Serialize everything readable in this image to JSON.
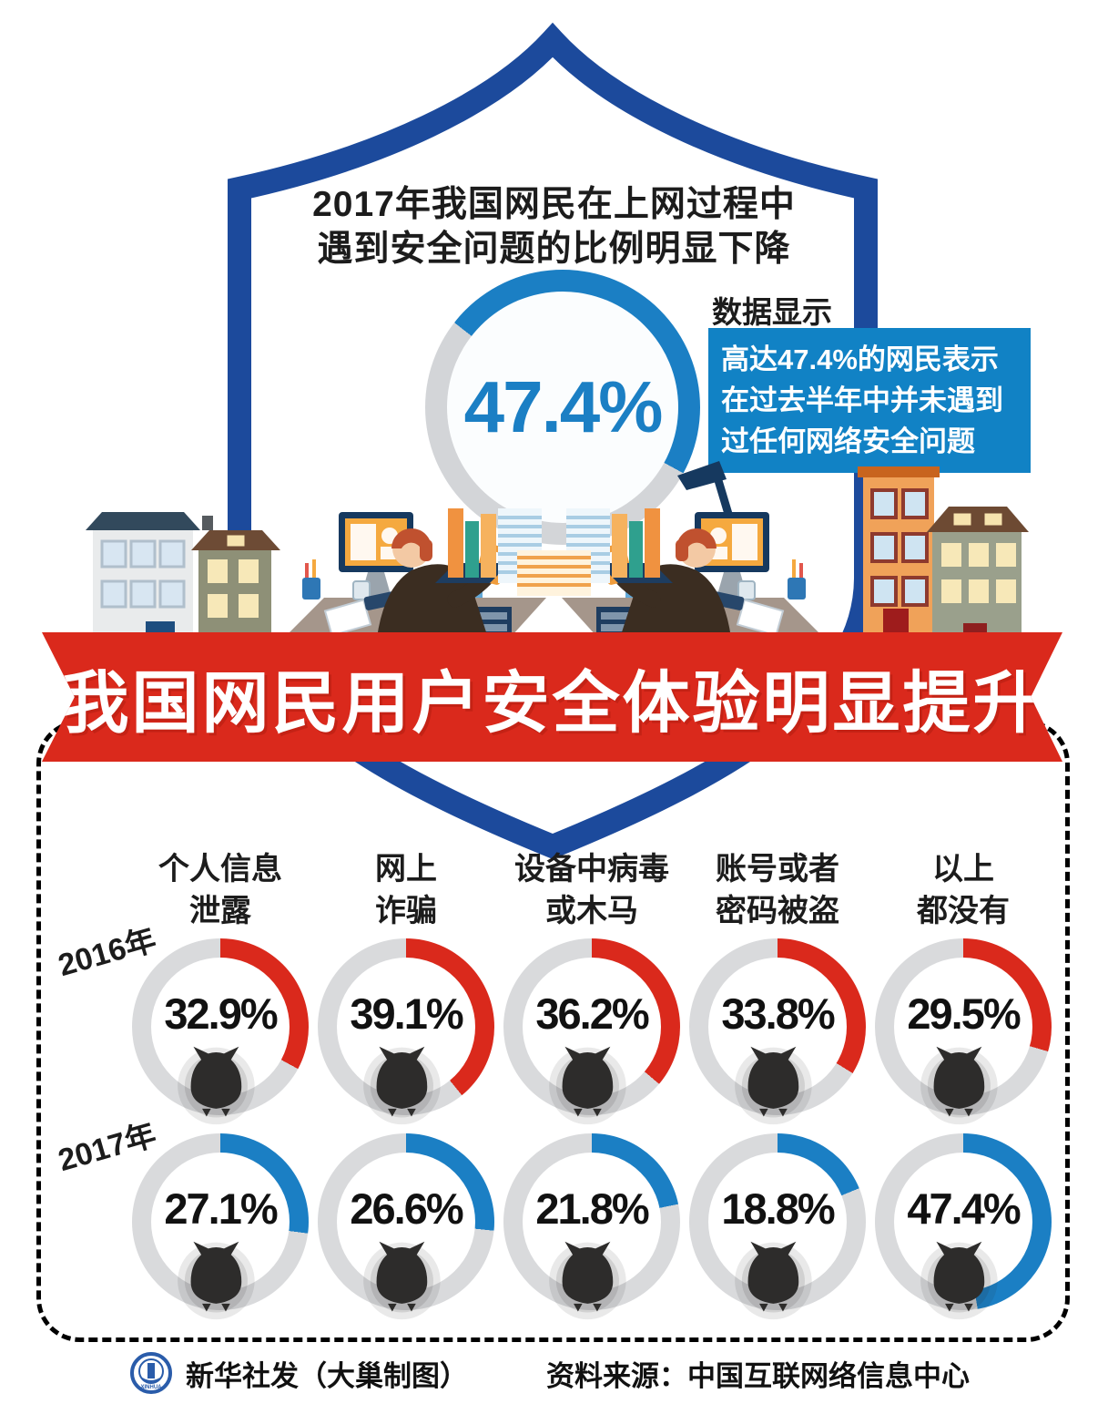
{
  "header": {
    "title_lines": [
      "2017年我国网民在上网过程中",
      "遇到安全问题的比例明显下降"
    ],
    "data_label": "数据显示",
    "callout_lines": [
      "高达47.4%的网民表示",
      "在过去半年中并未遇到",
      "过任何网络安全问题"
    ],
    "big_donut": {
      "value_label": "47.4%",
      "percent": 47.4,
      "color": "#1b7fc4",
      "track": "#d3d5d8"
    },
    "callout_bg": "#1182c5"
  },
  "banner": {
    "text": "我国网民用户安全体验明显提升",
    "bg": "#da291c"
  },
  "chart_data": {
    "type": "donut",
    "title": "我国网民用户安全体验明显提升",
    "unit": "%",
    "track_color": "#d9dadc",
    "start_angle_deg": 0,
    "categories": [
      [
        "个人信息",
        "泄露"
      ],
      [
        "网上",
        "诈骗"
      ],
      [
        "设备中病毒",
        "或木马"
      ],
      [
        "账号或者",
        "密码被盗"
      ],
      [
        "以上",
        "都没有"
      ]
    ],
    "series": [
      {
        "name": "2016年",
        "color": "#da291c",
        "values": [
          32.9,
          39.1,
          36.2,
          33.8,
          29.5
        ]
      },
      {
        "name": "2017年",
        "color": "#1b7fc4",
        "values": [
          27.1,
          26.6,
          21.8,
          18.8,
          47.4
        ]
      }
    ]
  },
  "footer": {
    "credit": "新华社发（大巢制图）",
    "source": "资料来源：中国互联网络信息中心",
    "logo": "xinhua-emblem"
  },
  "colors": {
    "shield": "#1c4a9c",
    "banner_red": "#da291c",
    "blue": "#1b7fc4"
  }
}
